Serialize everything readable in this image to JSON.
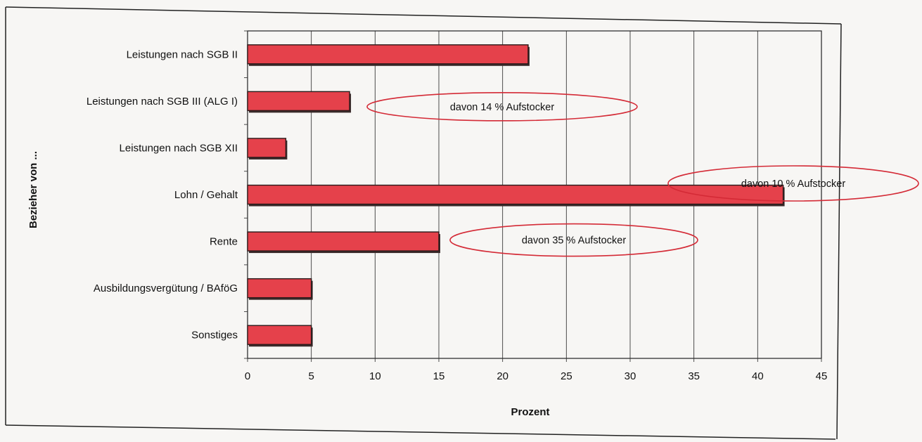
{
  "chart_data": {
    "type": "bar",
    "orientation": "horizontal",
    "title": "",
    "xlabel": "Prozent",
    "ylabel": "Bezieher von ...",
    "xlim": [
      0,
      45
    ],
    "xticks": [
      0,
      5,
      10,
      15,
      20,
      25,
      30,
      35,
      40,
      45
    ],
    "grid": true,
    "bar_color": "#e5414b",
    "categories": [
      "Leistungen nach SGB II",
      "Leistungen nach SGB III (ALG I)",
      "Leistungen nach SGB XII",
      "Lohn / Gehalt",
      "Rente",
      "Ausbildungsvergütung / BAföG",
      "Sonstiges"
    ],
    "values": [
      22,
      8,
      3,
      42,
      15,
      5,
      5
    ],
    "annotations": [
      {
        "category": "Leistungen nach SGB III (ALG I)",
        "text": "davon 14 % Aufstocker"
      },
      {
        "category": "Lohn / Gehalt",
        "text": "davon 10 % Aufstocker"
      },
      {
        "category": "Rente",
        "text": "davon 35 % Aufstocker"
      }
    ],
    "annotation_color": "#d42a36"
  }
}
